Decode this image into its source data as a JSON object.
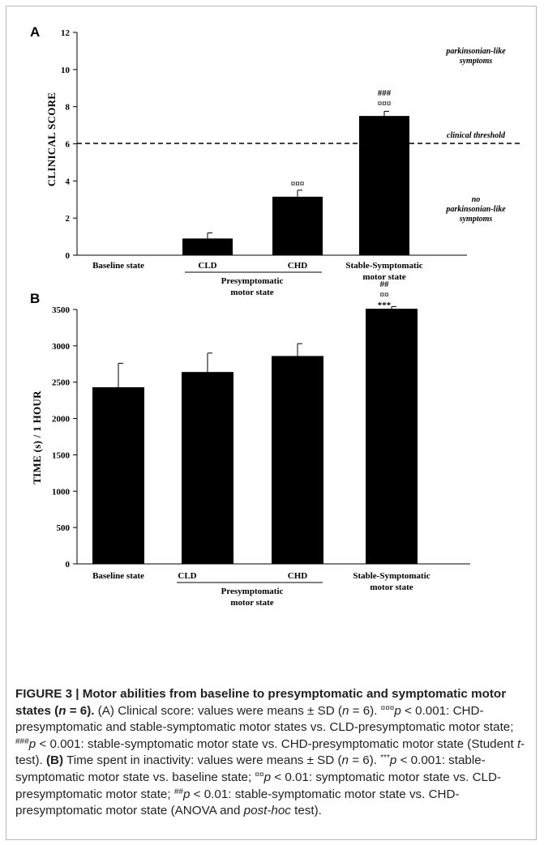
{
  "chart_data": [
    {
      "panel": "A",
      "type": "bar",
      "categories": [
        "Baseline state",
        "CLD",
        "CHD",
        "Stable-Symptomatic motor state"
      ],
      "values": [
        0,
        0.9,
        3.15,
        7.5
      ],
      "errors": [
        0,
        0.3,
        0.35,
        0.25
      ],
      "significance": [
        "",
        "",
        "¤¤¤",
        "###\n¤¤¤"
      ],
      "ylabel": "CLINICAL SCORE",
      "ylim": [
        0,
        12
      ],
      "yticks": [
        0,
        2,
        4,
        6,
        8,
        10,
        12
      ],
      "group_label": "Presymptomatic motor state",
      "threshold": {
        "value": 6,
        "label": "clinical threshold"
      },
      "annotations": {
        "above": "parkinsonian-like symptoms",
        "below": "no parkinsonian-like symptoms"
      },
      "color": "#000000",
      "grid": false
    },
    {
      "panel": "B",
      "type": "bar",
      "categories": [
        "Baseline state",
        "CLD",
        "CHD",
        "Stable-Symptomatic motor state"
      ],
      "values": [
        2430,
        2640,
        2860,
        3510
      ],
      "errors": [
        330,
        260,
        170,
        30
      ],
      "significance": [
        "",
        "",
        "",
        "##\n¤¤\n***"
      ],
      "ylabel": "TIME (s) / 1 HOUR",
      "ylim": [
        0,
        3500
      ],
      "yticks": [
        0,
        500,
        1000,
        1500,
        2000,
        2500,
        3000,
        3500
      ],
      "group_label": "Presymptomatic motor state",
      "color": "#000000",
      "grid": false
    }
  ],
  "panelA": {
    "letter": "A",
    "ylabel": "CLINICAL SCORE",
    "ticks": [
      "0",
      "2",
      "4",
      "6",
      "8",
      "10",
      "12"
    ],
    "cat1": "Baseline state",
    "cat2": "CLD",
    "cat3": "CHD",
    "cat4_line1": "Stable-Symptomatic",
    "cat4_line2": "motor state",
    "group_line1": "Presymptomatic",
    "group_line2": "motor state",
    "threshold_label": "clinical threshold",
    "above_line1": "parkinsonian-like",
    "above_line2": "symptoms",
    "below_line1": "no",
    "below_line2": "parkinsonian-like",
    "below_line3": "symptoms",
    "sig_chd": "¤¤¤",
    "sig_stable_1": "###",
    "sig_stable_2": "¤¤¤"
  },
  "panelB": {
    "letter": "B",
    "ylabel": "TIME (s) / 1 HOUR",
    "ticks": [
      "0",
      "500",
      "1000",
      "1500",
      "2000",
      "2500",
      "3000",
      "3500"
    ],
    "cat1": "Baseline state",
    "cat2": "CLD",
    "cat3": "CHD",
    "cat4_line1": "Stable-Symptomatic",
    "cat4_line2": "motor state",
    "group_line1": "Presymptomatic",
    "group_line2": "motor state",
    "sig_1": "##",
    "sig_2": "¤¤",
    "sig_3": "***"
  },
  "caption": {
    "head": "FIGURE 3 | Motor abilities from baseline to presymptomatic and symptomatic motor states (",
    "head_n": "n",
    "head_end": " = 6).",
    "a_intro": " (A) Clinical score: values were means ± SD (",
    "a_n": "n",
    "a_eq": " = 6). ",
    "a_sym1": "¤¤¤",
    "a_p1": "p",
    "a_txt1": " < 0.001: CHD-presymptomatic and stable-symptomatic motor states vs. CLD-presymptomatic motor state; ",
    "a_sym2": "###",
    "a_p2": "p",
    "a_txt2": " < 0.001: stable-symptomatic motor state vs. CHD-presymptomatic motor state (Student ",
    "a_t": "t",
    "a_txt3": "-test). ",
    "b_label": "(B)",
    "b_intro": " Time spent in inactivity: values were means ± SD (",
    "b_n": "n",
    "b_eq": " = 6). ",
    "b_sym1": "***",
    "b_p1": "p",
    "b_txt1": " < 0.001: stable-symptomatic motor state vs. baseline state; ",
    "b_sym2": "¤¤",
    "b_p2": "p",
    "b_txt2": " < 0.01: symptomatic motor state vs. CLD-presymptomatic motor state; ",
    "b_sym3": "##",
    "b_p3": "p",
    "b_txt3": " < 0.01: stable-symptomatic motor state vs. CHD-presymptomatic motor state (ANOVA and ",
    "b_posthoc": "post-hoc",
    "b_txt4": " test)."
  }
}
